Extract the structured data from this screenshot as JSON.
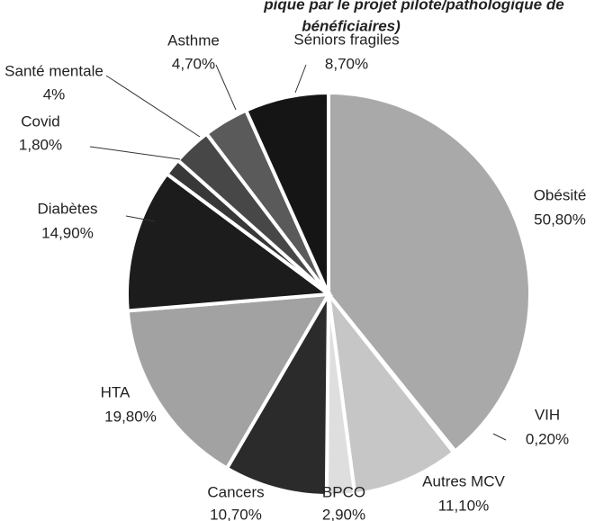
{
  "chart_data": {
    "type": "pie",
    "title": [
      "pique par le projet pilote/pathologique de",
      "bénéficiaires)"
    ],
    "categories": [
      "Obésité",
      "VIH",
      "Autres MCV",
      "BPCO",
      "Cancers",
      "HTA",
      "Diabètes",
      "Covid",
      "Santé mentale",
      "Asthme",
      "Séniors fragiles"
    ],
    "values": [
      50.8,
      0.2,
      11.1,
      2.9,
      10.7,
      19.8,
      14.9,
      1.8,
      4,
      4.7,
      8.7
    ],
    "value_labels": [
      "50,80%",
      "0,20%",
      "11,10%",
      "2,90%",
      "10,70%",
      "19,80%",
      "14,90%",
      "1,80%",
      "4%",
      "4,70%",
      "8,70%"
    ],
    "colors": [
      "#a9a9a9",
      "#f0f0f0",
      "#c6c6c6",
      "#dedede",
      "#2b2b2b",
      "#a2a2a2",
      "#1c1c1c",
      "#383838",
      "#474747",
      "#5a5a5a",
      "#151515"
    ]
  }
}
